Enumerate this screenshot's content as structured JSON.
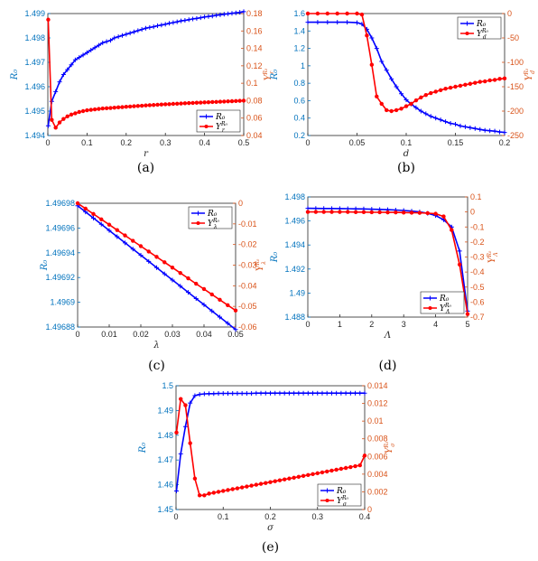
{
  "colors": {
    "blue": "#0000ff",
    "red": "#ff0000",
    "left_axis": "#0072bd",
    "right_axis": "#d95319"
  },
  "chart_data": [
    {
      "id": "a",
      "type": "line",
      "caption": "(a)",
      "xlabel": "r",
      "ylabel_left": "R₀",
      "ylabel_right": "Υ_r^{R₀}",
      "xlim": [
        0,
        0.5
      ],
      "ylim_left": [
        1.494,
        1.499
      ],
      "ylim_right": [
        0.04,
        0.18
      ],
      "xticks": [
        "0",
        "0.1",
        "0.2",
        "0.3",
        "0.4",
        "0.5"
      ],
      "yticks_left": [
        "1.494",
        "1.495",
        "1.496",
        "1.497",
        "1.498",
        "1.499"
      ],
      "yticks_right": [
        "0.04",
        "0.06",
        "0.08",
        "0.1",
        "0.12",
        "0.14",
        "0.16",
        "0.18"
      ],
      "legend": {
        "placement": "bottom-right",
        "entries": [
          "R₀",
          "Υ_r^{R₀}"
        ]
      },
      "series": [
        {
          "name": "R₀",
          "axis": "left",
          "color": "blue",
          "marker": "plus",
          "x": [
            0.001,
            0.01,
            0.02,
            0.03,
            0.04,
            0.05,
            0.06,
            0.07,
            0.08,
            0.09,
            0.1,
            0.11,
            0.12,
            0.13,
            0.14,
            0.15,
            0.16,
            0.17,
            0.18,
            0.19,
            0.2,
            0.21,
            0.22,
            0.23,
            0.24,
            0.25,
            0.26,
            0.27,
            0.28,
            0.29,
            0.3,
            0.31,
            0.32,
            0.33,
            0.34,
            0.35,
            0.36,
            0.37,
            0.38,
            0.39,
            0.4,
            0.41,
            0.42,
            0.43,
            0.44,
            0.45,
            0.46,
            0.47,
            0.48,
            0.49,
            0.5
          ],
          "y": [
            1.4944,
            1.4954,
            1.4958,
            1.4962,
            1.4965,
            1.4967,
            1.4969,
            1.4971,
            1.4972,
            1.4973,
            1.4974,
            1.4975,
            1.4976,
            1.4977,
            1.4978,
            1.49785,
            1.4979,
            1.498,
            1.49805,
            1.4981,
            1.49815,
            1.4982,
            1.49825,
            1.4983,
            1.49835,
            1.4984,
            1.49843,
            1.49846,
            1.4985,
            1.49853,
            1.49856,
            1.4986,
            1.49863,
            1.49866,
            1.4987,
            1.49872,
            1.49875,
            1.49878,
            1.4988,
            1.49883,
            1.49886,
            1.49888,
            1.4989,
            1.49893,
            1.49895,
            1.49897,
            1.49899,
            1.49901,
            1.49903,
            1.49905,
            1.49908
          ]
        },
        {
          "name": "Υ_r^{R₀}",
          "axis": "right",
          "color": "red",
          "marker": "dot",
          "x": [
            0.001,
            0.01,
            0.02,
            0.03,
            0.04,
            0.05,
            0.06,
            0.07,
            0.08,
            0.09,
            0.1,
            0.11,
            0.12,
            0.13,
            0.14,
            0.15,
            0.16,
            0.17,
            0.18,
            0.19,
            0.2,
            0.21,
            0.22,
            0.23,
            0.24,
            0.25,
            0.26,
            0.27,
            0.28,
            0.29,
            0.3,
            0.31,
            0.32,
            0.33,
            0.34,
            0.35,
            0.36,
            0.37,
            0.38,
            0.39,
            0.4,
            0.41,
            0.42,
            0.43,
            0.44,
            0.45,
            0.46,
            0.47,
            0.48,
            0.49,
            0.5
          ],
          "y": [
            0.173,
            0.058,
            0.049,
            0.055,
            0.059,
            0.062,
            0.064,
            0.0655,
            0.067,
            0.068,
            0.069,
            0.0695,
            0.07,
            0.0705,
            0.071,
            0.0713,
            0.0716,
            0.072,
            0.0723,
            0.0726,
            0.073,
            0.0733,
            0.0736,
            0.0739,
            0.0742,
            0.0745,
            0.0748,
            0.075,
            0.0753,
            0.0756,
            0.0758,
            0.076,
            0.0763,
            0.0765,
            0.0768,
            0.077,
            0.0772,
            0.0774,
            0.0776,
            0.0778,
            0.078,
            0.0782,
            0.0784,
            0.0786,
            0.0788,
            0.079,
            0.0792,
            0.0794,
            0.0796,
            0.0798,
            0.08
          ]
        }
      ]
    },
    {
      "id": "b",
      "type": "line",
      "caption": "(b)",
      "xlabel": "d",
      "ylabel_left": "R₀",
      "ylabel_right": "Υ_d^{R₀}",
      "xlim": [
        0,
        0.2
      ],
      "ylim_left": [
        0.2,
        1.6
      ],
      "ylim_right": [
        -250,
        0
      ],
      "xticks": [
        "0",
        "0.05",
        "0.1",
        "0.15",
        "0.2"
      ],
      "yticks_left": [
        "0.2",
        "0.4",
        "0.6",
        "0.8",
        "1",
        "1.2",
        "1.4",
        "1.6"
      ],
      "yticks_right": [
        "-250",
        "-200",
        "-150",
        "-100",
        "-50",
        "0"
      ],
      "legend": {
        "placement": "top-right",
        "entries": [
          "R₀",
          "Υ_d^{R₀}"
        ]
      },
      "series": [
        {
          "name": "R₀",
          "axis": "left",
          "color": "blue",
          "marker": "plus",
          "x": [
            0,
            0.01,
            0.02,
            0.03,
            0.04,
            0.05,
            0.055,
            0.06,
            0.065,
            0.07,
            0.075,
            0.08,
            0.085,
            0.09,
            0.095,
            0.1,
            0.105,
            0.11,
            0.115,
            0.12,
            0.125,
            0.13,
            0.135,
            0.14,
            0.145,
            0.15,
            0.155,
            0.16,
            0.165,
            0.17,
            0.175,
            0.18,
            0.185,
            0.19,
            0.195,
            0.2
          ],
          "y": [
            1.5,
            1.5,
            1.5,
            1.5,
            1.5,
            1.495,
            1.48,
            1.42,
            1.32,
            1.2,
            1.05,
            0.95,
            0.85,
            0.76,
            0.68,
            0.61,
            0.56,
            0.52,
            0.48,
            0.45,
            0.42,
            0.4,
            0.38,
            0.36,
            0.34,
            0.33,
            0.31,
            0.3,
            0.29,
            0.28,
            0.27,
            0.26,
            0.255,
            0.25,
            0.24,
            0.235
          ]
        },
        {
          "name": "Υ_d^{R₀}",
          "axis": "right",
          "color": "red",
          "marker": "dot",
          "x": [
            0,
            0.01,
            0.02,
            0.03,
            0.04,
            0.05,
            0.055,
            0.06,
            0.065,
            0.07,
            0.075,
            0.08,
            0.085,
            0.09,
            0.095,
            0.1,
            0.105,
            0.11,
            0.115,
            0.12,
            0.125,
            0.13,
            0.135,
            0.14,
            0.145,
            0.15,
            0.155,
            0.16,
            0.165,
            0.17,
            0.175,
            0.18,
            0.185,
            0.19,
            0.195,
            0.2
          ],
          "y": [
            0,
            0,
            0,
            0,
            0,
            0,
            -2,
            -45,
            -105,
            -170,
            -185,
            -198,
            -200,
            -198,
            -195,
            -190,
            -185,
            -178,
            -172,
            -167,
            -163,
            -160,
            -157,
            -154,
            -152,
            -150,
            -148,
            -146,
            -144,
            -142,
            -140,
            -139,
            -137,
            -136,
            -134,
            -133
          ]
        }
      ]
    },
    {
      "id": "c",
      "type": "line",
      "caption": "(c)",
      "xlabel": "λ",
      "ylabel_left": "R₀",
      "ylabel_right": "Υ_λ^{R₀}",
      "xlim": [
        0,
        0.05
      ],
      "ylim_left": [
        1.49688,
        1.49698
      ],
      "ylim_right": [
        -0.06,
        0
      ],
      "xticks": [
        "0",
        "0.01",
        "0.02",
        "0.03",
        "0.04",
        "0.05"
      ],
      "yticks_left": [
        "1.49688",
        "1.4969",
        "1.49692",
        "1.49694",
        "1.49696",
        "1.49698"
      ],
      "yticks_right": [
        "-0.06",
        "-0.05",
        "-0.04",
        "-0.03",
        "-0.02",
        "-0.01",
        "0"
      ],
      "legend": {
        "placement": "top-right",
        "entries": [
          "R₀",
          "Υ_λ^{R₀}"
        ]
      },
      "series": [
        {
          "name": "R₀",
          "axis": "left",
          "color": "blue",
          "marker": "plus",
          "x": [
            0,
            0.0025,
            0.005,
            0.0075,
            0.01,
            0.0125,
            0.015,
            0.0175,
            0.02,
            0.0225,
            0.025,
            0.0275,
            0.03,
            0.0325,
            0.035,
            0.0375,
            0.04,
            0.0425,
            0.045,
            0.0475,
            0.05
          ],
          "y": [
            1.496978,
            1.496973,
            1.496968,
            1.496963,
            1.496958,
            1.496953,
            1.496948,
            1.496943,
            1.496938,
            1.496933,
            1.496928,
            1.496923,
            1.496918,
            1.496913,
            1.496908,
            1.496903,
            1.496898,
            1.496893,
            1.496888,
            1.496883,
            1.496878
          ]
        },
        {
          "name": "Υ_λ^{R₀}",
          "axis": "right",
          "color": "red",
          "marker": "dot",
          "x": [
            0,
            0.0025,
            0.005,
            0.0075,
            0.01,
            0.0125,
            0.015,
            0.0175,
            0.02,
            0.0225,
            0.025,
            0.0275,
            0.03,
            0.0325,
            0.035,
            0.0375,
            0.04,
            0.0425,
            0.045,
            0.0475,
            0.05
          ],
          "y": [
            0,
            -0.0026,
            -0.0052,
            -0.0078,
            -0.0104,
            -0.013,
            -0.0156,
            -0.0182,
            -0.0208,
            -0.0234,
            -0.026,
            -0.0286,
            -0.0312,
            -0.0338,
            -0.0364,
            -0.039,
            -0.0416,
            -0.0442,
            -0.0468,
            -0.0494,
            -0.052
          ]
        }
      ]
    },
    {
      "id": "d",
      "type": "line",
      "caption": "(d)",
      "xlabel": "Λ",
      "ylabel_left": "R₀",
      "ylabel_right": "Υ_Λ^{R₀}",
      "xlim": [
        0,
        5
      ],
      "ylim_left": [
        1.488,
        1.498
      ],
      "ylim_right": [
        -0.7,
        0.1
      ],
      "xticks": [
        "0",
        "1",
        "2",
        "3",
        "4",
        "5"
      ],
      "yticks_left": [
        "1.488",
        "1.49",
        "1.492",
        "1.494",
        "1.496",
        "1.498"
      ],
      "yticks_right": [
        "-0.7",
        "-0.6",
        "-0.5",
        "-0.4",
        "-0.3",
        "-0.2",
        "-0.1",
        "0",
        "0.1"
      ],
      "legend": {
        "placement": "bottom-right",
        "entries": [
          "R₀",
          "Υ_Λ^{R₀}"
        ]
      },
      "series": [
        {
          "name": "R₀",
          "axis": "left",
          "color": "blue",
          "marker": "plus",
          "x": [
            0,
            0.25,
            0.5,
            0.75,
            1,
            1.25,
            1.5,
            1.75,
            2,
            2.25,
            2.5,
            2.75,
            3,
            3.25,
            3.5,
            3.75,
            4,
            4.25,
            4.5,
            4.75,
            5
          ],
          "y": [
            1.49705,
            1.497045,
            1.49704,
            1.497035,
            1.49703,
            1.49702,
            1.49701,
            1.497,
            1.49698,
            1.49696,
            1.49694,
            1.49691,
            1.49687,
            1.49682,
            1.49675,
            1.49664,
            1.49645,
            1.4961,
            1.4955,
            1.4935,
            1.4885
          ]
        },
        {
          "name": "Υ_Λ^{R₀}",
          "axis": "right",
          "color": "red",
          "marker": "dot",
          "x": [
            0,
            0.25,
            0.5,
            0.75,
            1,
            1.25,
            1.5,
            1.75,
            2,
            2.25,
            2.5,
            2.75,
            3,
            3.25,
            3.5,
            3.75,
            4,
            4.25,
            4.5,
            4.75,
            5
          ],
          "y": [
            0,
            0,
            0,
            0,
            0,
            0,
            -0.001,
            -0.001,
            -0.002,
            -0.002,
            -0.003,
            -0.003,
            -0.004,
            -0.005,
            -0.006,
            -0.008,
            -0.012,
            -0.03,
            -0.12,
            -0.35,
            -0.68
          ]
        }
      ]
    },
    {
      "id": "e",
      "type": "line",
      "caption": "(e)",
      "xlabel": "σ",
      "ylabel_left": "R₀",
      "ylabel_right": "Υ_σ^{R₀}",
      "xlim": [
        0,
        0.4
      ],
      "ylim_left": [
        1.45,
        1.5
      ],
      "ylim_right": [
        0,
        0.014
      ],
      "xticks": [
        "0",
        "0.1",
        "0.2",
        "0.3",
        "0.4"
      ],
      "yticks_left": [
        "1.45",
        "1.46",
        "1.47",
        "1.48",
        "1.49",
        "1.5"
      ],
      "yticks_right": [
        "0",
        "0.002",
        "0.004",
        "0.006",
        "0.008",
        "0.01",
        "0.012",
        "0.014"
      ],
      "legend": {
        "placement": "bottom-right",
        "entries": [
          "R₀",
          "Υ_σ^{R₀}"
        ]
      },
      "series": [
        {
          "name": "R₀",
          "axis": "left",
          "color": "blue",
          "marker": "plus",
          "x": [
            0.001,
            0.01,
            0.02,
            0.03,
            0.04,
            0.05,
            0.06,
            0.07,
            0.08,
            0.09,
            0.1,
            0.11,
            0.12,
            0.13,
            0.14,
            0.15,
            0.16,
            0.17,
            0.18,
            0.19,
            0.2,
            0.21,
            0.22,
            0.23,
            0.24,
            0.25,
            0.26,
            0.27,
            0.28,
            0.29,
            0.3,
            0.31,
            0.32,
            0.33,
            0.34,
            0.35,
            0.36,
            0.37,
            0.38,
            0.39,
            0.4
          ],
          "y": [
            1.4575,
            1.4725,
            1.4835,
            1.493,
            1.496,
            1.4965,
            1.4967,
            1.4968,
            1.4968,
            1.4969,
            1.4969,
            1.4969,
            1.4969,
            1.4969,
            1.4969,
            1.4969,
            1.4969,
            1.497,
            1.497,
            1.497,
            1.497,
            1.497,
            1.497,
            1.497,
            1.497,
            1.497,
            1.497,
            1.497,
            1.497,
            1.497,
            1.497,
            1.497,
            1.497,
            1.497,
            1.497,
            1.497,
            1.497,
            1.497,
            1.497,
            1.497,
            1.497
          ]
        },
        {
          "name": "Υ_σ^{R₀}",
          "axis": "right",
          "color": "red",
          "marker": "dot",
          "x": [
            0.001,
            0.01,
            0.02,
            0.03,
            0.04,
            0.05,
            0.06,
            0.07,
            0.08,
            0.09,
            0.1,
            0.11,
            0.12,
            0.13,
            0.14,
            0.15,
            0.16,
            0.17,
            0.18,
            0.19,
            0.2,
            0.21,
            0.22,
            0.23,
            0.24,
            0.25,
            0.26,
            0.27,
            0.28,
            0.29,
            0.3,
            0.31,
            0.32,
            0.33,
            0.34,
            0.35,
            0.36,
            0.37,
            0.38,
            0.39,
            0.4
          ],
          "y": [
            0.0087,
            0.0125,
            0.0118,
            0.0075,
            0.0035,
            0.0016,
            0.0016,
            0.0018,
            0.0019,
            0.002,
            0.0021,
            0.0022,
            0.0023,
            0.0024,
            0.0025,
            0.0026,
            0.0027,
            0.0028,
            0.0029,
            0.003,
            0.0031,
            0.0032,
            0.0033,
            0.0034,
            0.0035,
            0.0036,
            0.0037,
            0.0038,
            0.0039,
            0.004,
            0.0041,
            0.0042,
            0.0043,
            0.0044,
            0.0045,
            0.0046,
            0.0047,
            0.0048,
            0.0049,
            0.005,
            0.0061
          ]
        }
      ]
    }
  ]
}
